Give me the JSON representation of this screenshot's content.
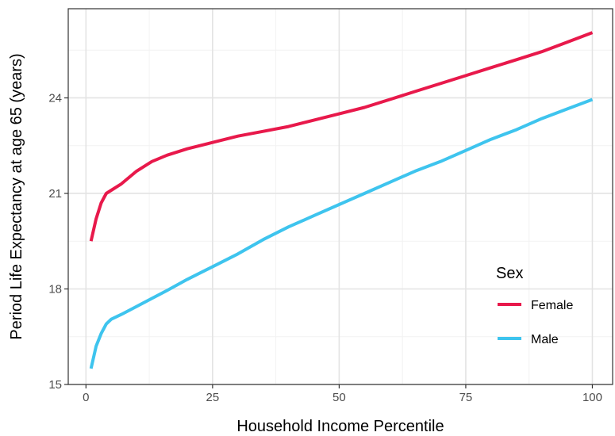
{
  "chart_data": {
    "type": "line",
    "xlabel": "Household Income Percentile",
    "ylabel": "Period Life Expectancy at age 65 (years)",
    "xlim": [
      -3.5,
      104
    ],
    "ylim": [
      15,
      26.8
    ],
    "x_ticks": [
      0,
      25,
      50,
      75,
      100
    ],
    "x_tick_labels": [
      "0",
      "25",
      "50",
      "75",
      "100"
    ],
    "y_ticks": [
      15,
      18,
      21,
      24
    ],
    "y_tick_labels": [
      "15",
      "18",
      "21",
      "24"
    ],
    "grid": true,
    "legend": {
      "title": "Sex",
      "position": "bottom-right"
    },
    "series": [
      {
        "name": "Female",
        "color": "#e8194b",
        "x": [
          1,
          2,
          3,
          4,
          5,
          7,
          10,
          13,
          16,
          20,
          25,
          30,
          35,
          40,
          45,
          50,
          55,
          60,
          65,
          70,
          75,
          80,
          85,
          90,
          95,
          100
        ],
        "y": [
          19.5,
          20.2,
          20.7,
          21.0,
          21.1,
          21.3,
          21.7,
          22.0,
          22.2,
          22.4,
          22.6,
          22.8,
          22.95,
          23.1,
          23.3,
          23.5,
          23.7,
          23.95,
          24.2,
          24.45,
          24.7,
          24.95,
          25.2,
          25.45,
          25.75,
          26.05
        ]
      },
      {
        "name": "Male",
        "color": "#3ec4ee",
        "x": [
          1,
          2,
          3,
          4,
          5,
          7,
          10,
          13,
          16,
          20,
          25,
          30,
          35,
          40,
          45,
          50,
          55,
          60,
          65,
          70,
          75,
          80,
          85,
          90,
          95,
          100
        ],
        "y": [
          15.5,
          16.2,
          16.6,
          16.9,
          17.05,
          17.2,
          17.45,
          17.7,
          17.95,
          18.3,
          18.7,
          19.1,
          19.55,
          19.95,
          20.3,
          20.65,
          21.0,
          21.35,
          21.7,
          22.0,
          22.35,
          22.7,
          23.0,
          23.35,
          23.65,
          23.95
        ]
      }
    ]
  }
}
